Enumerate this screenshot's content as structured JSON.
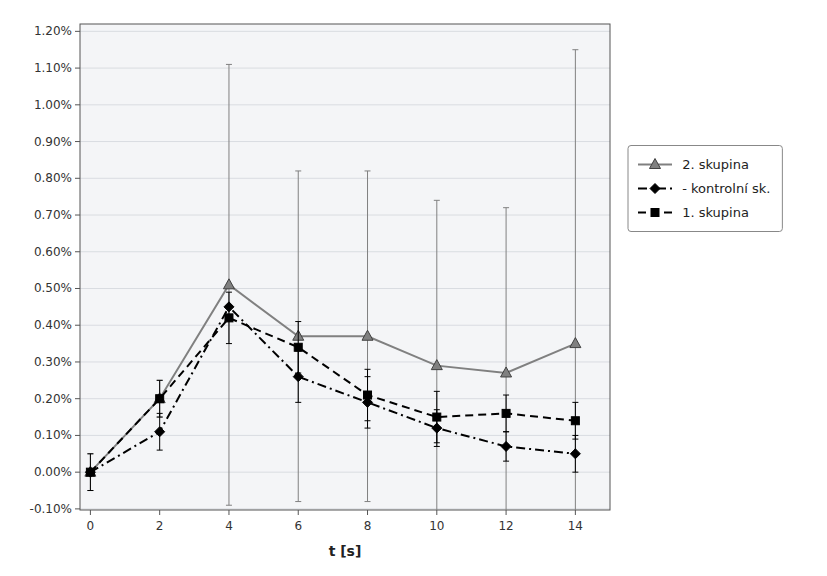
{
  "chart_data": {
    "type": "line",
    "x_label": "t [s]",
    "x": [
      0,
      2,
      4,
      6,
      8,
      10,
      12,
      14
    ],
    "xlim": [
      -0.3,
      15
    ],
    "xticks": [
      0,
      2,
      4,
      6,
      8,
      10,
      12,
      14
    ],
    "ylim": [
      -0.00103,
      0.0122
    ],
    "yticks": [
      {
        "value": -0.001,
        "label": "-0.10%"
      },
      {
        "value": 0.0,
        "label": "0.00%"
      },
      {
        "value": 0.001,
        "label": "0.10%"
      },
      {
        "value": 0.002,
        "label": "0.20%"
      },
      {
        "value": 0.003,
        "label": "0.30%"
      },
      {
        "value": 0.004,
        "label": "0.40%"
      },
      {
        "value": 0.005,
        "label": "0.50%"
      },
      {
        "value": 0.006,
        "label": "0.60%"
      },
      {
        "value": 0.007,
        "label": "0.70%"
      },
      {
        "value": 0.008,
        "label": "0.80%"
      },
      {
        "value": 0.009,
        "label": "0.90%"
      },
      {
        "value": 0.01,
        "label": "1.00%"
      },
      {
        "value": 0.011,
        "label": "1.10%"
      },
      {
        "value": 0.012,
        "label": "1.20%"
      }
    ],
    "grid": true,
    "legend": "right",
    "series": [
      {
        "name": " 2. skupina",
        "color": "#808080",
        "marker": "triangle",
        "line_style": "solid",
        "values": [
          0.0,
          0.002,
          0.0051,
          0.0037,
          0.0037,
          0.0029,
          0.0027,
          0.0035
        ],
        "errors": [
          0.0005,
          0.0005,
          0.006,
          0.0045,
          0.0045,
          0.0045,
          0.0045,
          0.008
        ]
      },
      {
        "name": " - kontrolní sk.",
        "color": "#000000",
        "marker": "diamond",
        "line_style": "dashdot",
        "values": [
          0.0,
          0.0011,
          0.0045,
          0.0026,
          0.0019,
          0.0012,
          0.0007,
          0.0005
        ],
        "errors": [
          0.0005,
          0.0005,
          0.0,
          0.0007,
          0.0007,
          0.0005,
          0.0004,
          0.0005
        ]
      },
      {
        "name": " 1. skupina",
        "color": "#000000",
        "marker": "square",
        "line_style": "dashed",
        "values": [
          0.0,
          0.002,
          0.0042,
          0.0034,
          0.0021,
          0.0015,
          0.0016,
          0.0014
        ],
        "errors": [
          0.0,
          0.0005,
          0.0007,
          0.0007,
          0.0007,
          0.0007,
          0.0005,
          0.0005
        ]
      }
    ]
  }
}
